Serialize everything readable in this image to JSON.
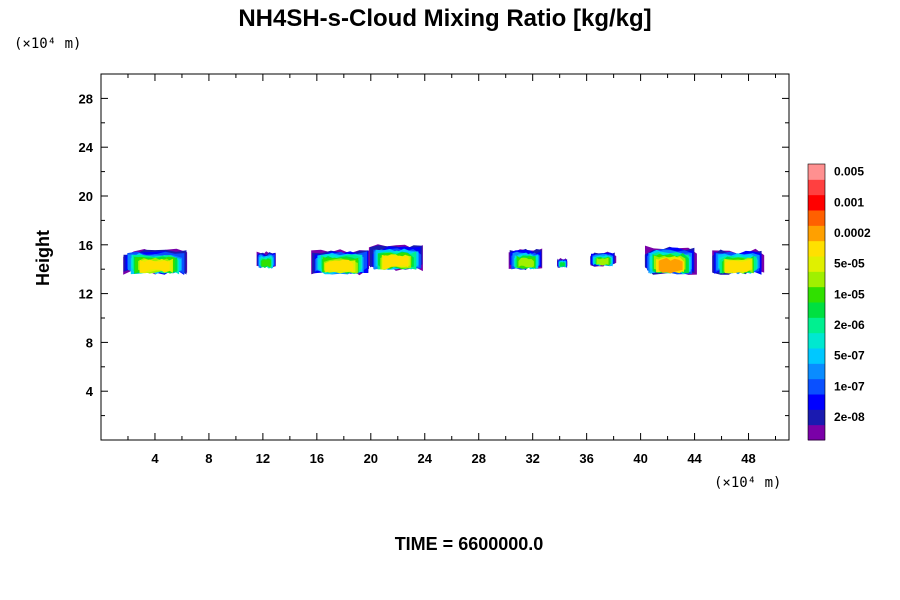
{
  "chart_data": {
    "type": "heatmap",
    "title": "NH4SH-s-Cloud Mixing Ratio [kg/kg]",
    "ylabel": "Height",
    "x_unit": "(×10⁴ m)",
    "y_unit": "(×10⁴ m)",
    "footer": "TIME = 6600000.0",
    "xlim": [
      0,
      51
    ],
    "ylim": [
      0,
      30
    ],
    "x_ticks": [
      4,
      8,
      12,
      16,
      20,
      24,
      28,
      32,
      36,
      40,
      44,
      48
    ],
    "y_ticks": [
      4,
      8,
      12,
      16,
      20,
      24,
      28
    ],
    "colorbar": {
      "colors": [
        "#7a00a8",
        "#1a1ab0",
        "#0000ff",
        "#0a50ff",
        "#0a8cff",
        "#00c8ff",
        "#00e8d0",
        "#00f090",
        "#00e040",
        "#30e000",
        "#a0f000",
        "#e0f000",
        "#ffe000",
        "#ffa000",
        "#ff6000",
        "#ff0000",
        "#ff4040",
        "#ff9090"
      ],
      "labels": [
        "2e-08",
        "1e-07",
        "5e-07",
        "2e-06",
        "1e-05",
        "5e-05",
        "0.0002",
        "0.001",
        "0.005"
      ]
    },
    "cloud_cells": [
      {
        "x_start": 1.5,
        "x_end": 6.5,
        "y_bottom": 13.5,
        "y_top": 15.9,
        "peak_level": 12
      },
      {
        "x_start": 11.5,
        "x_end": 13.0,
        "y_bottom": 14.0,
        "y_top": 15.6,
        "peak_level": 9
      },
      {
        "x_start": 15.5,
        "x_end": 20.0,
        "y_bottom": 13.5,
        "y_top": 15.9,
        "peak_level": 12
      },
      {
        "x_start": 19.8,
        "x_end": 24.0,
        "y_bottom": 13.8,
        "y_top": 16.3,
        "peak_level": 12
      },
      {
        "x_start": 30.2,
        "x_end": 32.8,
        "y_bottom": 13.9,
        "y_top": 15.9,
        "peak_level": 10
      },
      {
        "x_start": 33.8,
        "x_end": 34.6,
        "y_bottom": 14.1,
        "y_top": 15.0,
        "peak_level": 8
      },
      {
        "x_start": 36.2,
        "x_end": 38.2,
        "y_bottom": 14.2,
        "y_top": 15.6,
        "peak_level": 10
      },
      {
        "x_start": 40.2,
        "x_end": 44.2,
        "y_bottom": 13.5,
        "y_top": 16.2,
        "peak_level": 13
      },
      {
        "x_start": 45.2,
        "x_end": 49.2,
        "y_bottom": 13.5,
        "y_top": 15.9,
        "peak_level": 12
      }
    ]
  }
}
